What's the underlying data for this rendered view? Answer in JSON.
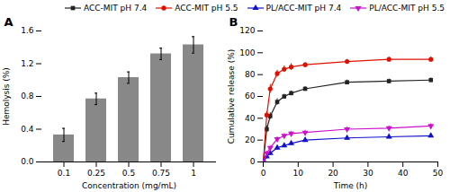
{
  "chart_data": [
    {
      "type": "bar",
      "title": "A",
      "categories": [
        "0.1",
        "0.25",
        "0.5",
        "0.75",
        "1"
      ],
      "values": [
        0.33,
        0.77,
        1.03,
        1.32,
        1.43
      ],
      "errors": [
        0.08,
        0.07,
        0.07,
        0.07,
        0.1
      ],
      "color": "#888888",
      "xlabel": "Concentration (mg/mL)",
      "ylabel": "Hemolysis (%)",
      "ylim": [
        0,
        1.6
      ],
      "yticks": [
        {
          "value": 0.0,
          "label": "0.0"
        },
        0.4,
        0.8,
        1.2,
        1.6
      ],
      "grid": false
    },
    {
      "type": "line",
      "title": "B",
      "x": [
        0,
        1,
        2,
        4,
        6,
        8,
        12,
        24,
        36,
        48
      ],
      "series": [
        {
          "name": "ACC-MIT pH 7.4",
          "color": "#222222",
          "marker": "square",
          "values": [
            0,
            30,
            42,
            55,
            60,
            63,
            67,
            73,
            74,
            75
          ],
          "errors": [
            0,
            3,
            3,
            3,
            2,
            2,
            2,
            2,
            2,
            2
          ]
        },
        {
          "name": "ACC-MIT pH 5.5",
          "color": "#dd1100",
          "marker": "circle",
          "values": [
            0,
            43,
            67,
            81,
            85,
            87,
            89,
            92,
            94,
            94
          ],
          "errors": [
            0,
            3,
            4,
            3,
            3,
            3,
            2,
            2,
            2,
            2
          ]
        },
        {
          "name": "PL/ACC-MIT pH 7.4",
          "color": "#1111cc",
          "marker": "triangle-up",
          "values": [
            0,
            5,
            8,
            13,
            15,
            17,
            20,
            22,
            23,
            24
          ],
          "errors": [
            0,
            2,
            2,
            2,
            2,
            2,
            2,
            2,
            2,
            2
          ]
        },
        {
          "name": "PL/ACC-MIT pH 5.5",
          "color": "#cc11cc",
          "marker": "triangle-down",
          "values": [
            0,
            8,
            13,
            21,
            24,
            26,
            27,
            30,
            31,
            33
          ],
          "errors": [
            0,
            2,
            2,
            2,
            2,
            2,
            2,
            2,
            2,
            2
          ]
        }
      ],
      "xlabel": "Time (h)",
      "ylabel": "Cumulative release (%)",
      "xlim": [
        0,
        50
      ],
      "xticks": [
        0,
        10,
        20,
        30,
        40,
        50
      ],
      "ylim": [
        0,
        120
      ],
      "yticks": [
        0,
        20,
        40,
        60,
        80,
        100,
        120
      ],
      "legend": "upper right",
      "grid": false
    }
  ]
}
